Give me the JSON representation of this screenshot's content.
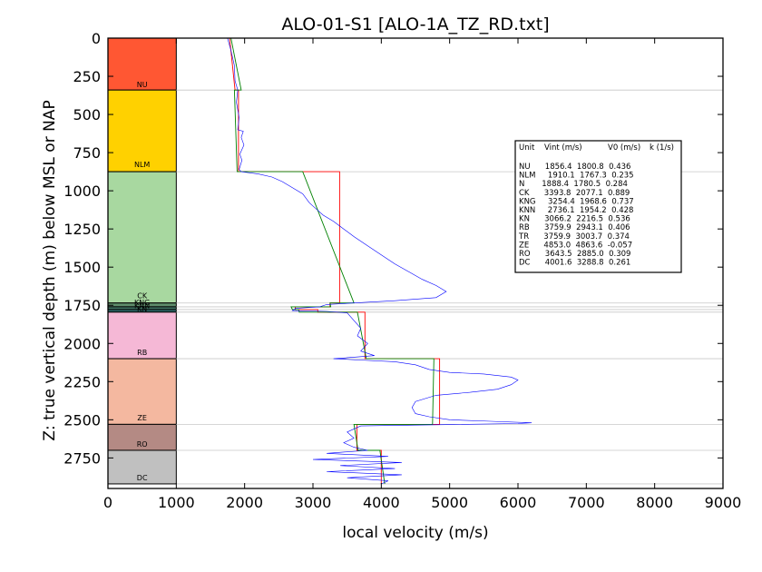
{
  "chart_data": {
    "type": "line",
    "title": "ALO-01-S1 [ALO-1A_TZ_RD.txt]",
    "xlabel": "local velocity (m/s)",
    "ylabel": "Z: true vertical depth (m) below MSL or NAP",
    "xlim": [
      0,
      9000
    ],
    "ylim": [
      2950,
      0
    ],
    "x_ticks": [
      "0",
      "1000",
      "2000",
      "3000",
      "4000",
      "5000",
      "6000",
      "7000",
      "8000",
      "9000"
    ],
    "y_ticks": [
      "0",
      "250",
      "500",
      "750",
      "1000",
      "1250",
      "1500",
      "1750",
      "2000",
      "2250",
      "2500",
      "2750"
    ],
    "grid": false,
    "units": [
      {
        "name": "NU",
        "top": 0,
        "bottom": 340,
        "color": "#ff5733",
        "vint": 1856.4,
        "v0": 1800.8,
        "k": 0.436
      },
      {
        "name": "NLM",
        "top": 340,
        "bottom": 875,
        "color": "#ffd100",
        "vint": 1910.1,
        "v0": 1767.3,
        "k": 0.235
      },
      {
        "name": "CK",
        "top": 875,
        "bottom": 1735,
        "color": "#a8d8a0",
        "vint": 3393.8,
        "v0": 2077.1,
        "k": 0.889
      },
      {
        "name": "KNG",
        "top": 1735,
        "bottom": 1760,
        "color": "#5e8c6a",
        "vint": 3254.4,
        "v0": 1968.6,
        "k": 0.737
      },
      {
        "name": "KNN",
        "top": 1760,
        "bottom": 1778,
        "color": "#3f7060",
        "vint": 2736.1,
        "v0": 1954.2,
        "k": 0.428
      },
      {
        "name": "KN",
        "top": 1778,
        "bottom": 1795,
        "color": "#2d6a6a",
        "vint": 3066.2,
        "v0": 2216.5,
        "k": 0.536
      },
      {
        "name": "RB",
        "top": 1795,
        "bottom": 2100,
        "color": "#f5b8d6",
        "vint": 3759.9,
        "v0": 2943.1,
        "k": 0.406
      },
      {
        "name": "ZE",
        "top": 2100,
        "bottom": 2530,
        "color": "#f4b8a0",
        "vint": 4853.0,
        "v0": 4863.6,
        "k": -0.057
      },
      {
        "name": "RO",
        "top": 2530,
        "bottom": 2700,
        "color": "#b48a84",
        "vint": 3643.5,
        "v0": 2885.0,
        "k": 0.309
      },
      {
        "name": "DC",
        "top": 2700,
        "bottom": 2920,
        "color": "#c0c0c0",
        "vint": 4001.6,
        "v0": 3288.8,
        "k": 0.261
      }
    ],
    "unit_labels_shown": [
      "NU",
      "NLM",
      "CK",
      "KNG",
      "KNN",
      "KN",
      "RB",
      "ZE",
      "RO",
      "DC"
    ],
    "table_header": {
      "unit": "Unit",
      "vint": "Vint (m/s)",
      "v0": "V0 (m/s)",
      "k": "k (1/s)"
    },
    "table_rows": [
      "NU      1856.4  1800.8  0.436",
      "NLM     1910.1  1767.3  0.235",
      "N       1888.4  1780.5  0.284",
      "CK      3393.8  2077.1  0.889",
      "KNG     3254.4  1968.6  0.737",
      "KNN     2736.1  1954.2  0.428",
      "KN      3066.2  2216.5  0.536",
      "RB      3759.9  2943.1  0.406",
      "TR      3759.9  3003.7  0.374",
      "ZE      4853.0  4863.6  -0.057",
      "RO      3643.5  2885.0  0.309",
      "DC      4001.6  3288.8  0.261"
    ],
    "series": [
      {
        "style": "interval-velocity",
        "color": "#ff0000",
        "points": [
          [
            1780,
            0
          ],
          [
            1860,
            340
          ],
          [
            1910,
            340
          ],
          [
            1910,
            875
          ],
          [
            3390,
            875
          ],
          [
            3390,
            1735
          ],
          [
            3250,
            1735
          ],
          [
            3250,
            1760
          ],
          [
            2740,
            1760
          ],
          [
            2740,
            1778
          ],
          [
            3070,
            1778
          ],
          [
            3070,
            1795
          ],
          [
            3760,
            1795
          ],
          [
            3760,
            2100
          ],
          [
            4853,
            2100
          ],
          [
            4853,
            2530
          ],
          [
            3643,
            2530
          ],
          [
            3643,
            2700
          ],
          [
            4000,
            2700
          ],
          [
            4000,
            2920
          ]
        ]
      },
      {
        "style": "linear-velocity-model",
        "color": "#008000",
        "points": [
          [
            1800,
            0
          ],
          [
            1950,
            340
          ],
          [
            1850,
            340
          ],
          [
            1890,
            875
          ],
          [
            2850,
            875
          ],
          [
            3600,
            1735
          ],
          [
            3250,
            1735
          ],
          [
            3260,
            1760
          ],
          [
            2680,
            1760
          ],
          [
            2700,
            1778
          ],
          [
            2790,
            1778
          ],
          [
            2800,
            1795
          ],
          [
            3650,
            1795
          ],
          [
            3780,
            2100
          ],
          [
            4770,
            2100
          ],
          [
            4750,
            2530
          ],
          [
            3600,
            2530
          ],
          [
            3660,
            2700
          ],
          [
            3980,
            2700
          ],
          [
            4050,
            2920
          ]
        ]
      },
      {
        "style": "well-log",
        "color": "#0000ff",
        "points": [
          [
            1750,
            0
          ],
          [
            1800,
            80
          ],
          [
            1850,
            180
          ],
          [
            1860,
            280
          ],
          [
            1900,
            340
          ],
          [
            1880,
            420
          ],
          [
            1920,
            520
          ],
          [
            1900,
            600
          ],
          [
            1980,
            610
          ],
          [
            1950,
            650
          ],
          [
            1990,
            700
          ],
          [
            1930,
            760
          ],
          [
            1960,
            800
          ],
          [
            1920,
            860
          ],
          [
            1950,
            875
          ],
          [
            2200,
            890
          ],
          [
            2400,
            910
          ],
          [
            2550,
            940
          ],
          [
            2700,
            980
          ],
          [
            2850,
            1020
          ],
          [
            2950,
            1080
          ],
          [
            3050,
            1120
          ],
          [
            3150,
            1160
          ],
          [
            3300,
            1200
          ],
          [
            3450,
            1250
          ],
          [
            3600,
            1300
          ],
          [
            3800,
            1360
          ],
          [
            4000,
            1420
          ],
          [
            4200,
            1480
          ],
          [
            4400,
            1530
          ],
          [
            4600,
            1580
          ],
          [
            4800,
            1620
          ],
          [
            4950,
            1660
          ],
          [
            4800,
            1700
          ],
          [
            4200,
            1720
          ],
          [
            3600,
            1735
          ],
          [
            3200,
            1745
          ],
          [
            3100,
            1760
          ],
          [
            2750,
            1770
          ],
          [
            2700,
            1785
          ],
          [
            3200,
            1790
          ],
          [
            3500,
            1800
          ],
          [
            3600,
            1850
          ],
          [
            3700,
            1900
          ],
          [
            3650,
            1950
          ],
          [
            3800,
            2000
          ],
          [
            3700,
            2050
          ],
          [
            3900,
            2080
          ],
          [
            3300,
            2100
          ],
          [
            4200,
            2120
          ],
          [
            4500,
            2140
          ],
          [
            4700,
            2170
          ],
          [
            5000,
            2190
          ],
          [
            5500,
            2200
          ],
          [
            5900,
            2220
          ],
          [
            6000,
            2240
          ],
          [
            5900,
            2270
          ],
          [
            5700,
            2300
          ],
          [
            5300,
            2320
          ],
          [
            4800,
            2340
          ],
          [
            4500,
            2380
          ],
          [
            4450,
            2420
          ],
          [
            4500,
            2460
          ],
          [
            4700,
            2480
          ],
          [
            5000,
            2500
          ],
          [
            5600,
            2510
          ],
          [
            6200,
            2520
          ],
          [
            6000,
            2525
          ],
          [
            3700,
            2540
          ],
          [
            3500,
            2580
          ],
          [
            3600,
            2620
          ],
          [
            3450,
            2650
          ],
          [
            3600,
            2680
          ],
          [
            3800,
            2700
          ],
          [
            3200,
            2720
          ],
          [
            4100,
            2740
          ],
          [
            3000,
            2760
          ],
          [
            4300,
            2780
          ],
          [
            3400,
            2800
          ],
          [
            4200,
            2820
          ],
          [
            3200,
            2840
          ],
          [
            4300,
            2860
          ],
          [
            3500,
            2880
          ],
          [
            4100,
            2900
          ],
          [
            4000,
            2920
          ]
        ]
      }
    ]
  }
}
